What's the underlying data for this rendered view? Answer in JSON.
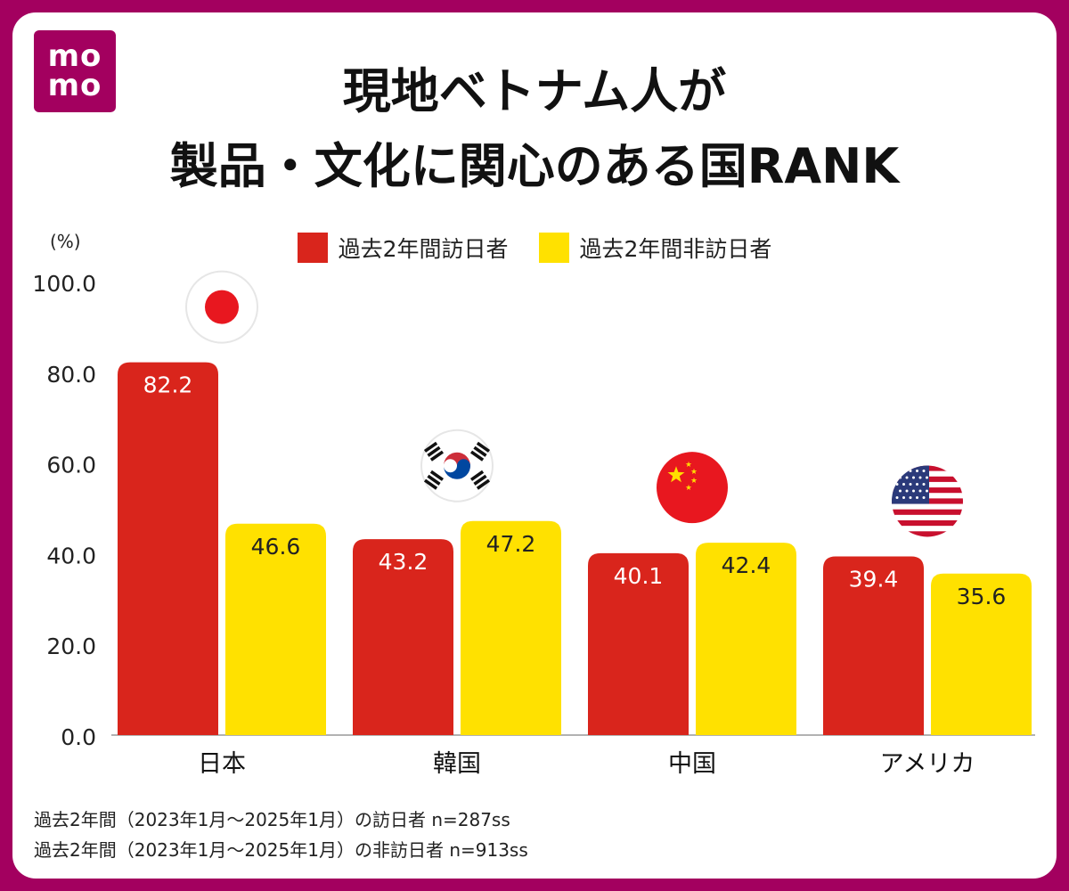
{
  "brand": {
    "logo_line1": "mo",
    "logo_line2": "mo"
  },
  "title": {
    "line1": "現地ベトナム人が",
    "line2": "製品・文化に関心のある国RANK"
  },
  "legend": [
    {
      "label": "過去2年間訪日者",
      "color": "#d9251c"
    },
    {
      "label": "過去2年間非訪日者",
      "color": "#ffe100"
    }
  ],
  "chart_data": {
    "type": "bar",
    "title": "現地ベトナム人が製品・文化に関心のある国RANK",
    "ylabel": "(%)",
    "xlabel": "",
    "ylim": [
      0,
      100
    ],
    "yticks": [
      "0.0",
      "20.0",
      "40.0",
      "60.0",
      "80.0",
      "100.0"
    ],
    "categories": [
      "日本",
      "韓国",
      "中国",
      "アメリカ"
    ],
    "flag_icons": [
      "japan-flag-icon",
      "korea-flag-icon",
      "china-flag-icon",
      "usa-flag-icon"
    ],
    "series": [
      {
        "name": "過去2年間訪日者",
        "color": "#d9251c",
        "values": [
          82.2,
          43.2,
          40.1,
          39.4
        ],
        "labels": [
          "82.2",
          "43.2",
          "40.1",
          "39.4"
        ],
        "label_color": "#ffffff"
      },
      {
        "name": "過去2年間非訪日者",
        "color": "#ffe100",
        "values": [
          46.6,
          47.2,
          42.4,
          35.6
        ],
        "labels": [
          "46.6",
          "47.2",
          "42.4",
          "35.6"
        ],
        "label_color": "#222222"
      }
    ]
  },
  "footnotes": [
    "過去2年間（2023年1月～2025年1月）の訪日者 n=287ss",
    "過去2年間（2023年1月～2025年1月）の非訪日者 n=913ss"
  ]
}
